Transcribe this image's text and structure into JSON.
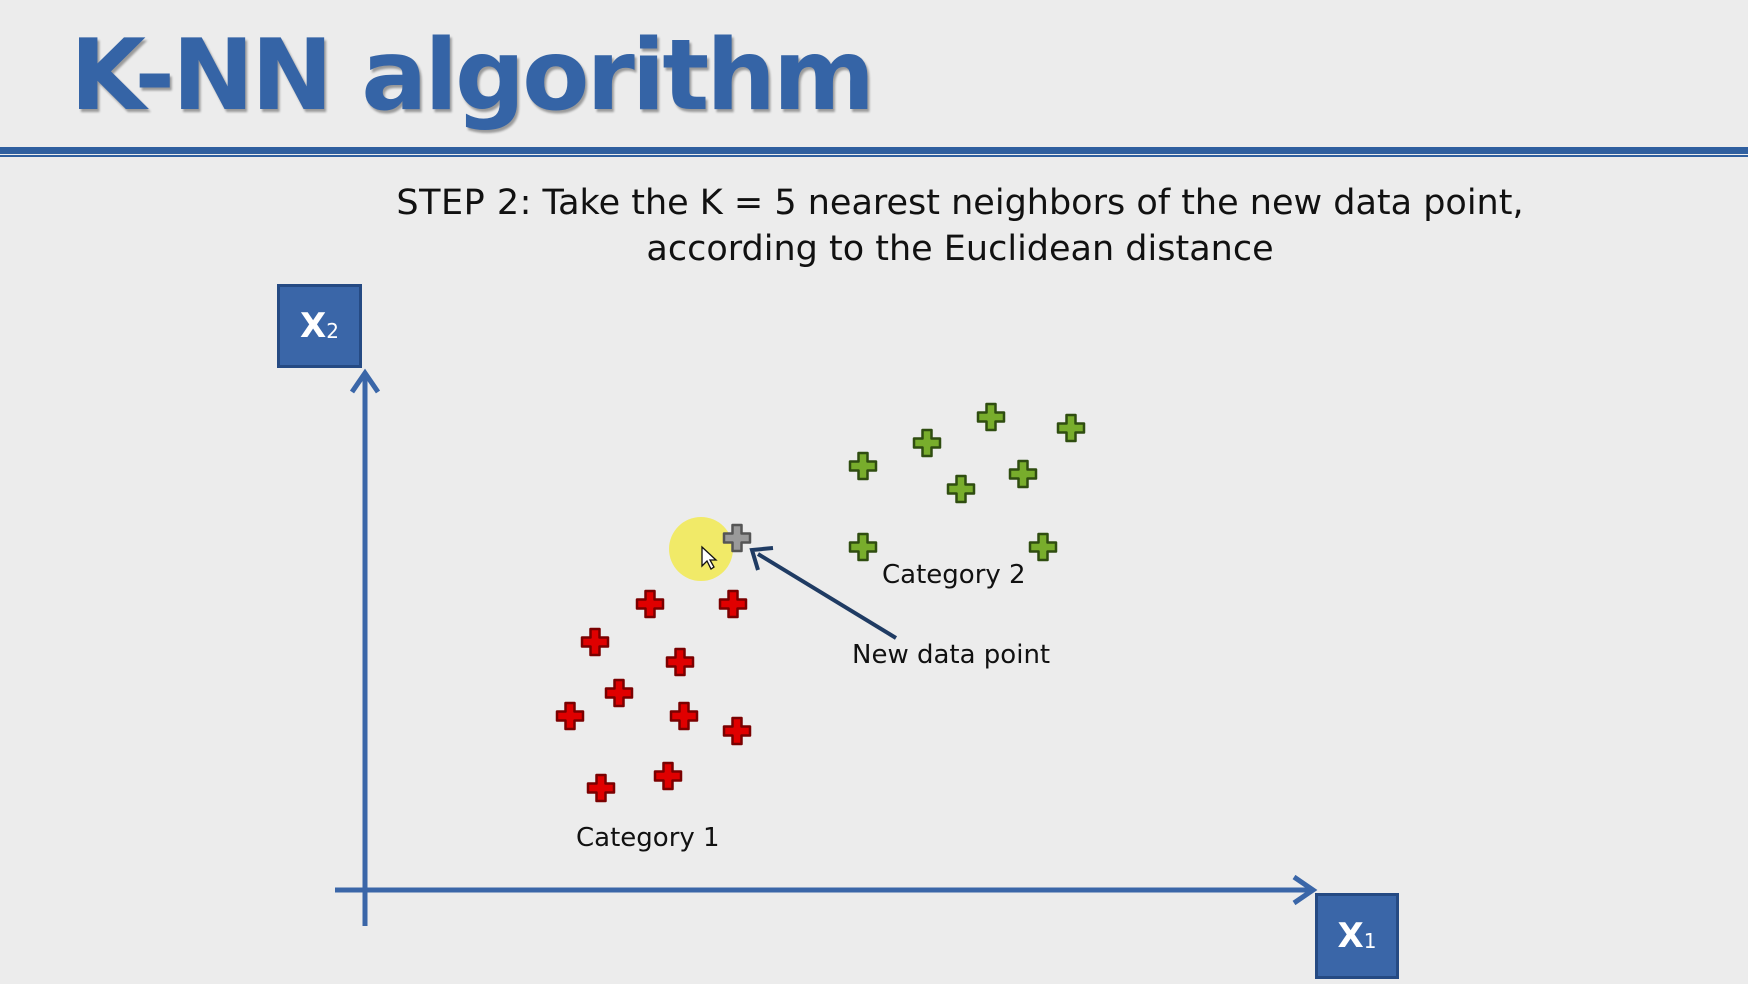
{
  "slide": {
    "title": "K-NN algorithm",
    "step_label": "STEP 2",
    "step_text_line1": ": Take the K = 5 nearest neighbors of the new data point,",
    "step_text_line2": "according to the Euclidean distance"
  },
  "axes": {
    "x_label": "X",
    "x_sub": "1",
    "y_label": "X",
    "y_sub": "2"
  },
  "annotations": {
    "category1": "Category 1",
    "category2": "Category 2",
    "new_point": "New data point"
  },
  "colors": {
    "title": "#3564a6",
    "axis": "#3a66a8",
    "category1": "#e00000",
    "category2": "#78ad2c",
    "new_point": "#9a9a9a",
    "cursor_highlight": "#f2ea5a"
  },
  "chart_data": {
    "type": "scatter",
    "series": [
      {
        "name": "Category 1",
        "points": [
          [
            650,
            604
          ],
          [
            733,
            604
          ],
          [
            595,
            642
          ],
          [
            680,
            662
          ],
          [
            619,
            693
          ],
          [
            570,
            716
          ],
          [
            684,
            716
          ],
          [
            737,
            731
          ],
          [
            668,
            776
          ],
          [
            601,
            788
          ]
        ]
      },
      {
        "name": "Category 2",
        "points": [
          [
            991,
            417
          ],
          [
            1071,
            428
          ],
          [
            927,
            443
          ],
          [
            1023,
            474
          ],
          [
            961,
            489
          ],
          [
            863,
            466
          ],
          [
            863,
            547
          ],
          [
            1043,
            547
          ]
        ]
      },
      {
        "name": "New data point",
        "points": [
          [
            737,
            538
          ]
        ]
      }
    ]
  }
}
